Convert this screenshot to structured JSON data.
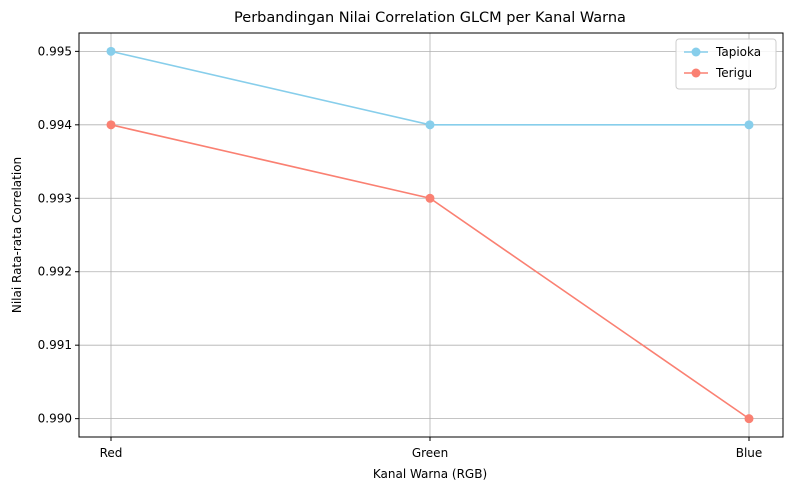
{
  "chart_data": {
    "type": "line",
    "title": "Perbandingan Nilai Correlation GLCM per Kanal Warna",
    "xlabel": "Kanal Warna (RGB)",
    "ylabel": "Nilai Rata-rata Correlation",
    "categories": [
      "Red",
      "Green",
      "Blue"
    ],
    "ylim": [
      0.98975,
      0.99525
    ],
    "yticks": [
      0.99,
      0.991,
      0.992,
      0.993,
      0.994,
      0.995
    ],
    "ytick_labels": [
      "0.990",
      "0.991",
      "0.992",
      "0.993",
      "0.994",
      "0.995"
    ],
    "grid": true,
    "legend_position": "top-right",
    "series": [
      {
        "name": "Tapioka",
        "values": [
          0.995,
          0.994,
          0.994
        ],
        "color": "#87CEEB",
        "marker": "circle"
      },
      {
        "name": "Terigu",
        "values": [
          0.994,
          0.993,
          0.99
        ],
        "color": "#FA8072",
        "marker": "circle"
      }
    ]
  }
}
